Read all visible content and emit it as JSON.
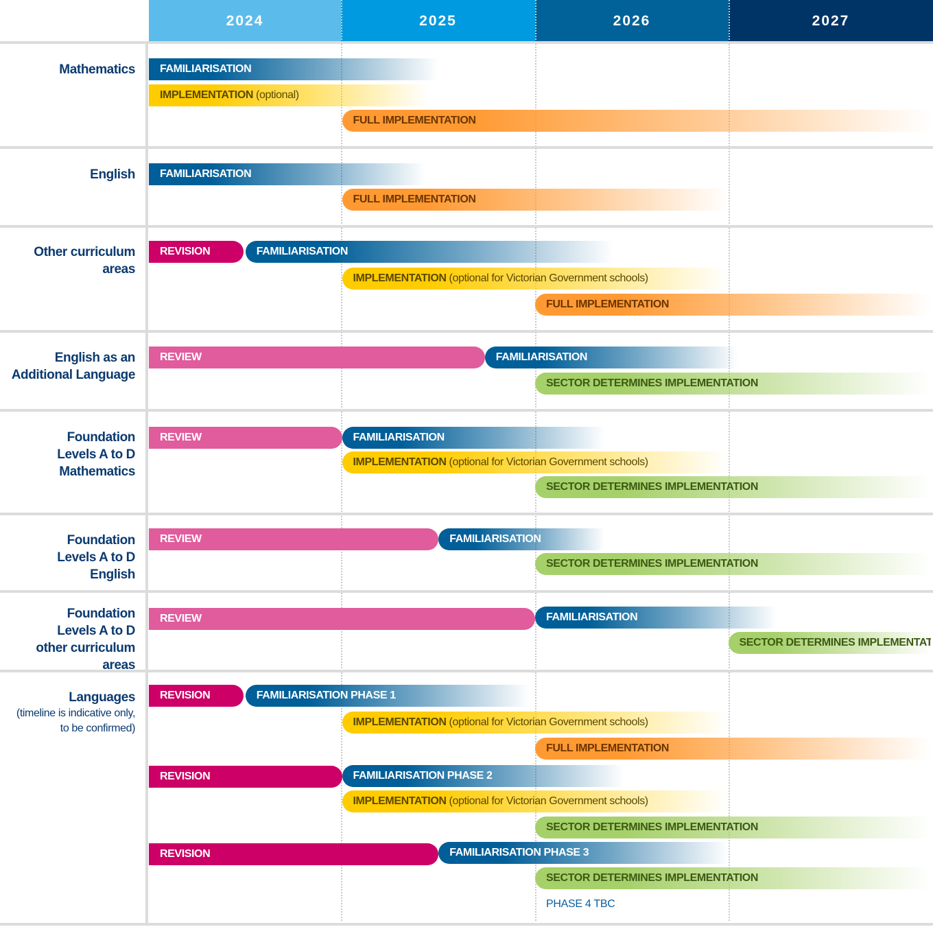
{
  "years": [
    "2024",
    "2025",
    "2026",
    "2027"
  ],
  "colors": {
    "header": [
      "#5bbcec",
      "#009ae0",
      "#006299",
      "#003366"
    ],
    "familiarisation": "#005e98",
    "implementation": "#ffcc00",
    "full": "#ff9a33",
    "revision": "#cc0066",
    "review": "#e05c9c",
    "sector": "#a6d06a"
  },
  "rows": [
    {
      "label": "Mathematics",
      "bars": [
        {
          "type": "familiarisation",
          "label": "FAMILIARISATION",
          "start": 2024,
          "end": 2025.5,
          "fade": true
        },
        {
          "type": "implementation",
          "label": "IMPLEMENTATION",
          "suffix": "(optional)",
          "start": 2024,
          "end": 2025.45,
          "fade": true
        },
        {
          "type": "full",
          "label": "FULL IMPLEMENTATION",
          "start": 2025,
          "end": 2028.05,
          "fade": true
        }
      ]
    },
    {
      "label": "English",
      "bars": [
        {
          "type": "familiarisation",
          "label": "FAMILIARISATION",
          "start": 2024,
          "end": 2025.43,
          "fade": true
        },
        {
          "type": "full",
          "label": "FULL IMPLEMENTATION",
          "start": 2025,
          "end": 2027,
          "fade": true
        }
      ]
    },
    {
      "label": "Other curriculum areas",
      "bars": [
        {
          "type": "revision",
          "label": "REVISION",
          "start": 2024,
          "end": 2024.49
        },
        {
          "type": "familiarisation",
          "label": "FAMILIARISATION",
          "start": 2024.5,
          "end": 2026.41,
          "fade": true
        },
        {
          "type": "implementation",
          "label": "IMPLEMENTATION",
          "suffix": "(optional for Victorian Government schools)",
          "start": 2025,
          "end": 2027,
          "fade": true
        },
        {
          "type": "full",
          "label": "FULL IMPLEMENTATION",
          "start": 2026,
          "end": 2028.05,
          "fade": true
        }
      ]
    },
    {
      "label": "English as an Additional Language",
      "bars": [
        {
          "type": "review",
          "label": "REVIEW",
          "start": 2024,
          "end": 2025.74
        },
        {
          "type": "familiarisation",
          "label": "FAMILIARISATION",
          "start": 2025.74,
          "end": 2027.05,
          "fade": true
        },
        {
          "type": "sector",
          "label": "SECTOR DETERMINES IMPLEMENTATION",
          "start": 2026,
          "end": 2028.05,
          "fade": true
        }
      ]
    },
    {
      "label": "Foundation Levels A to D Mathematics",
      "bars": [
        {
          "type": "review",
          "label": "REVIEW",
          "start": 2024,
          "end": 2025
        },
        {
          "type": "familiarisation",
          "label": "FAMILIARISATION",
          "start": 2025,
          "end": 2026.36,
          "fade": true
        },
        {
          "type": "implementation",
          "label": "IMPLEMENTATION",
          "suffix": "(optional for Victorian Government schools)",
          "start": 2025,
          "end": 2027,
          "fade": true
        },
        {
          "type": "sector",
          "label": "SECTOR DETERMINES IMPLEMENTATION",
          "start": 2026,
          "end": 2028.05,
          "fade": true
        }
      ]
    },
    {
      "label": "Foundation Levels A to D English",
      "bars": [
        {
          "type": "review",
          "label": "REVIEW",
          "start": 2024,
          "end": 2025.5
        },
        {
          "type": "familiarisation",
          "label": "FAMILIARISATION",
          "start": 2025.5,
          "end": 2026.36,
          "fade": true
        },
        {
          "type": "sector",
          "label": "SECTOR DETERMINES IMPLEMENTATION",
          "start": 2026,
          "end": 2028.05,
          "fade": true
        }
      ]
    },
    {
      "label": "Foundation Levels A to D other curriculum areas",
      "bars": [
        {
          "type": "review",
          "label": "REVIEW",
          "start": 2024,
          "end": 2026
        },
        {
          "type": "familiarisation",
          "label": "FAMILIARISATION",
          "start": 2026,
          "end": 2027.25,
          "fade": true
        },
        {
          "type": "sector",
          "label": "SECTOR DETERMINES IMPLEMENTATION",
          "start": 2027,
          "end": 2028.05,
          "fade": true
        }
      ]
    },
    {
      "label": "Languages",
      "sublabel": "(timeline is indicative only, to be confirmed)",
      "bars": [
        {
          "type": "revision",
          "label": "REVISION",
          "start": 2024,
          "end": 2024.49
        },
        {
          "type": "familiarisation",
          "label": "FAMILIARISATION PHASE 1",
          "start": 2024.5,
          "end": 2025.97,
          "fade": true
        },
        {
          "type": "implementation",
          "label": "IMPLEMENTATION",
          "suffix": "(optional for Victorian Government schools)",
          "start": 2025,
          "end": 2027,
          "fade": true
        },
        {
          "type": "full",
          "label": "FULL IMPLEMENTATION",
          "start": 2026,
          "end": 2028.05,
          "fade": true
        },
        {
          "type": "revision",
          "label": "REVISION",
          "start": 2024,
          "end": 2025
        },
        {
          "type": "familiarisation",
          "label": "FAMILIARISATION PHASE 2",
          "start": 2025,
          "end": 2026.46,
          "fade": true
        },
        {
          "type": "implementation",
          "label": "IMPLEMENTATION",
          "suffix": "(optional for Victorian Government schools)",
          "start": 2025,
          "end": 2027,
          "fade": true
        },
        {
          "type": "sector",
          "label": "SECTOR DETERMINES IMPLEMENTATION",
          "start": 2026,
          "end": 2028.05,
          "fade": true
        },
        {
          "type": "revision",
          "label": "REVISION",
          "start": 2024,
          "end": 2025.5
        },
        {
          "type": "familiarisation",
          "label": "FAMILIARISATION PHASE 3",
          "start": 2025.5,
          "end": 2027,
          "fade": true
        },
        {
          "type": "sector",
          "label": "SECTOR DETERMINES IMPLEMENTATION",
          "start": 2026,
          "end": 2028.05,
          "fade": true
        }
      ],
      "note": "PHASE 4 TBC"
    }
  ]
}
